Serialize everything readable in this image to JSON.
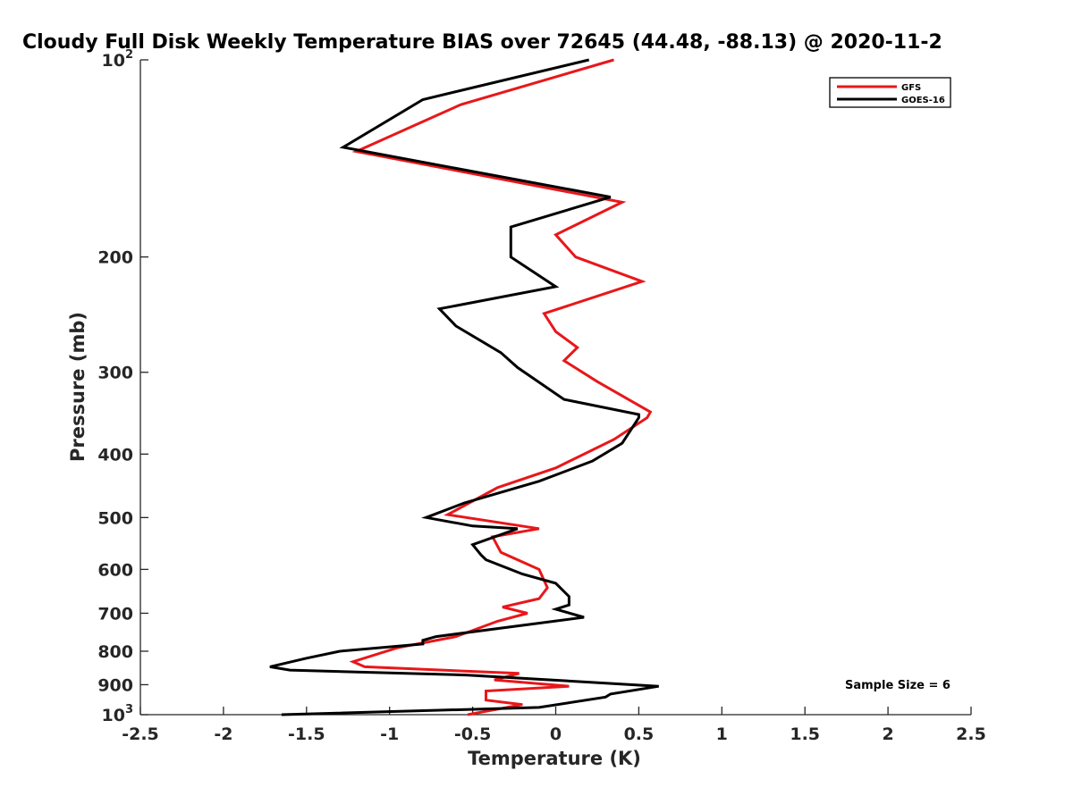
{
  "chart_data": {
    "type": "line",
    "title": "Cloudy Full Disk Weekly Temperature BIAS over 72645 (44.48, -88.13) @ 2020-11-2",
    "xlabel": "Temperature (K)",
    "ylabel": "Pressure (mb)",
    "xlim": [
      -2.5,
      2.5
    ],
    "ylim": [
      100,
      1000
    ],
    "yscale": "log",
    "y_reversed": true,
    "x_ticks": [
      "-2.5",
      "-2",
      "-1.5",
      "-1",
      "-0.5",
      "0",
      "0.5",
      "1",
      "1.5",
      "2",
      "2.5"
    ],
    "x_tick_values": [
      -2.5,
      -2,
      -1.5,
      -1,
      -0.5,
      0,
      0.5,
      1,
      1.5,
      2,
      2.5
    ],
    "y_ticks": [
      {
        "value": 100,
        "base": "10",
        "exp": "2"
      },
      {
        "value": 200,
        "label": "200"
      },
      {
        "value": 300,
        "label": "300"
      },
      {
        "value": 400,
        "label": "400"
      },
      {
        "value": 500,
        "label": "500"
      },
      {
        "value": 600,
        "label": "600"
      },
      {
        "value": 700,
        "label": "700"
      },
      {
        "value": 800,
        "label": "800"
      },
      {
        "value": 900,
        "label": "900"
      },
      {
        "value": 1000,
        "base": "10",
        "exp": "3"
      }
    ],
    "grid": false,
    "legend_position": "top-right",
    "annotation": "Sample Size = 6",
    "series": [
      {
        "name": "GFS",
        "color": "#e8171a",
        "points": [
          [
            0.35,
            100
          ],
          [
            -0.57,
            117
          ],
          [
            -1.2,
            138
          ],
          [
            0.4,
            165
          ],
          [
            0,
            185
          ],
          [
            0.12,
            200
          ],
          [
            0.52,
            218
          ],
          [
            -0.07,
            244
          ],
          [
            0,
            260
          ],
          [
            0.13,
            275
          ],
          [
            0.05,
            288
          ],
          [
            0.25,
            310
          ],
          [
            0.57,
            345
          ],
          [
            0.55,
            352
          ],
          [
            0.35,
            380
          ],
          [
            0,
            420
          ],
          [
            -0.35,
            450
          ],
          [
            -0.65,
            495
          ],
          [
            -0.1,
            520
          ],
          [
            -0.38,
            535
          ],
          [
            -0.33,
            565
          ],
          [
            -0.1,
            600
          ],
          [
            -0.05,
            640
          ],
          [
            -0.1,
            665
          ],
          [
            -0.32,
            685
          ],
          [
            -0.17,
            700
          ],
          [
            -0.35,
            720
          ],
          [
            -0.6,
            760
          ],
          [
            -0.95,
            790
          ],
          [
            -1.22,
            830
          ],
          [
            -1.15,
            845
          ],
          [
            -0.22,
            865
          ],
          [
            -0.37,
            885
          ],
          [
            0.08,
            905
          ],
          [
            -0.42,
            920
          ],
          [
            -0.42,
            950
          ],
          [
            -0.2,
            965
          ],
          [
            -0.53,
            1000
          ]
        ]
      },
      {
        "name": "GOES-16",
        "color": "#000000",
        "points": [
          [
            0.2,
            100
          ],
          [
            -0.8,
            115
          ],
          [
            -1.28,
            136
          ],
          [
            0.33,
            162
          ],
          [
            -0.27,
            180
          ],
          [
            -0.27,
            192
          ],
          [
            -0.27,
            200
          ],
          [
            0,
            222
          ],
          [
            -0.7,
            240
          ],
          [
            -0.6,
            255
          ],
          [
            -0.33,
            280
          ],
          [
            -0.23,
            295
          ],
          [
            0.05,
            330
          ],
          [
            0.5,
            348
          ],
          [
            0.5,
            352
          ],
          [
            0.4,
            385
          ],
          [
            0.22,
            410
          ],
          [
            -0.1,
            440
          ],
          [
            -0.55,
            475
          ],
          [
            -0.78,
            500
          ],
          [
            -0.5,
            515
          ],
          [
            -0.23,
            520
          ],
          [
            -0.5,
            550
          ],
          [
            -0.45,
            570
          ],
          [
            -0.42,
            580
          ],
          [
            -0.2,
            610
          ],
          [
            0,
            630
          ],
          [
            0.08,
            660
          ],
          [
            0.08,
            680
          ],
          [
            0,
            690
          ],
          [
            0.17,
            710
          ],
          [
            -0.72,
            760
          ],
          [
            -0.8,
            770
          ],
          [
            -0.8,
            780
          ],
          [
            -1.3,
            800
          ],
          [
            -1.5,
            820
          ],
          [
            -1.72,
            845
          ],
          [
            -1.6,
            855
          ],
          [
            -0.53,
            870
          ],
          [
            0.62,
            905
          ],
          [
            0.33,
            930
          ],
          [
            0.3,
            940
          ],
          [
            -0.1,
            975
          ],
          [
            -1.65,
            1000
          ]
        ]
      }
    ]
  }
}
